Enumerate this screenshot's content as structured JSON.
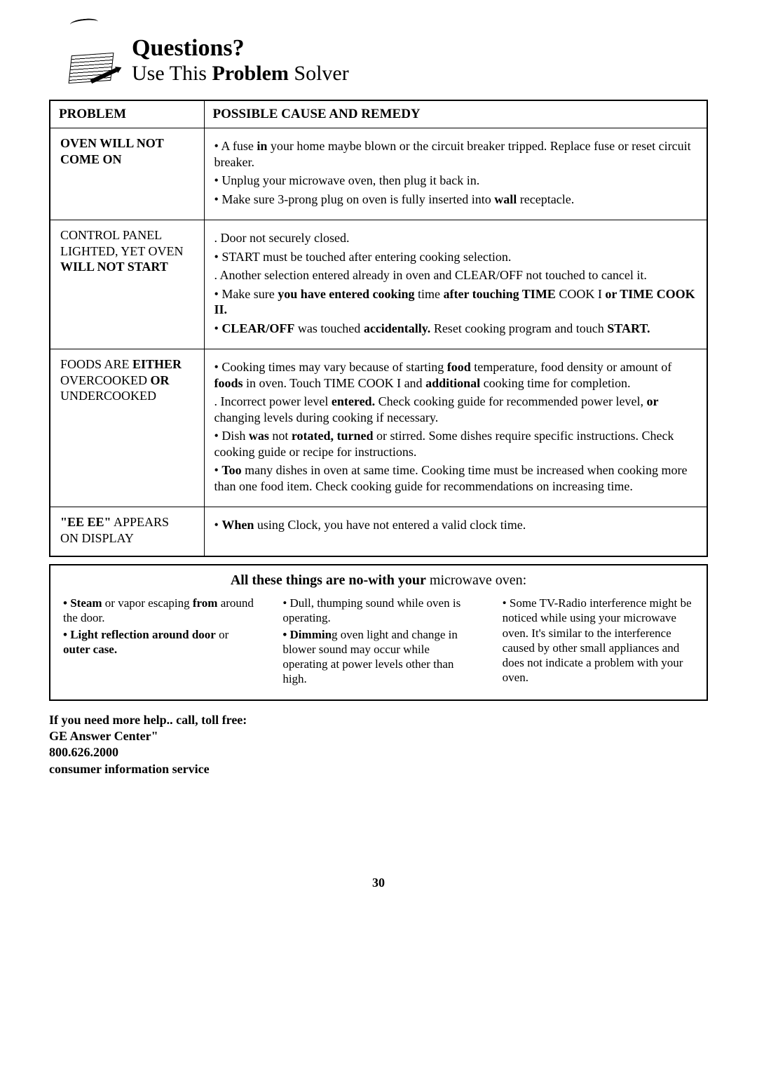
{
  "header": {
    "title": "Questions?",
    "subtitle_pre": "Use This ",
    "subtitle_bold": "Problem",
    "subtitle_post": " Solver"
  },
  "table": {
    "col_problem": "PROBLEM",
    "col_remedy": "POSSIBLE CAUSE AND REMEDY",
    "rows": [
      {
        "problem_html": "<span class='bold'>OVEN WILL NOT<br>COME ON</span>",
        "remedies": [
          {
            "b": true,
            "text": "A fuse <span class='bold'>in</span> your home maybe blown or the circuit breaker tripped. Replace fuse or reset circuit breaker."
          },
          {
            "b": true,
            "text": "Unplug your microwave oven, then plug it back in."
          },
          {
            "b": true,
            "text": "Make sure 3-prong plug on oven is fully inserted into <span class='bold'>wall</span> receptacle."
          }
        ]
      },
      {
        "problem_html": "CONTROL PANEL<br>LIGHTED, YET OVEN<br><span class='bold'>WILL NOT START</span>",
        "remedies": [
          {
            "b": false,
            "text": "Door not securely closed."
          },
          {
            "b": true,
            "text": "START must be touched after entering cooking selection."
          },
          {
            "b": false,
            "text": "Another selection entered already in oven and CLEAR/OFF not touched to cancel it."
          },
          {
            "b": true,
            "text": "Make sure <span class='bold'>you have entered cooking</span> time <span class='bold'>after touching TIME</span> COOK I <span class='bold'>or TIME COOK II.</span>"
          },
          {
            "b": true,
            "text": "<span class='bold'>CLEAR/OFF</span> was touched <span class='bold'>accidentally.</span> Reset cooking program and touch <span class='bold'>START.</span>"
          }
        ]
      },
      {
        "problem_html": "FOODS ARE <span class='bold'>EITHER</span><br>OVERCOOKED <span class='bold'>OR</span><br>UNDERCOOKED",
        "remedies": [
          {
            "b": true,
            "text": "Cooking times may vary because of starting <span class='bold'>food</span> temperature, food density or amount of <span class='bold'>foods</span> in oven. Touch TIME COOK I and <span class='bold'>additional</span> cooking time for completion."
          },
          {
            "b": false,
            "text": "Incorrect power level <span class='bold'>entered.</span> Check cooking guide for recommended power level, <span class='bold'>or</span> changing levels during cooking if necessary."
          },
          {
            "b": true,
            "text": "Dish <span class='bold'>was</span> not <span class='bold'>rotated, turned</span> or stirred. Some dishes require specific instructions. Check cooking guide or recipe for instructions."
          },
          {
            "b": true,
            "text": "<span class='bold'>Too</span> many dishes in oven at same time. Cooking time must be increased when cooking more than one food item. Check cooking guide for recommendations on increasing time."
          }
        ]
      },
      {
        "problem_html": "<span class='bold'>\"EE EE\"</span> APPEARS<br>ON DISPLAY",
        "remedies": [
          {
            "b": true,
            "text": "<span class='bold'>When</span> using Clock, you have not entered a valid clock time."
          }
        ]
      }
    ]
  },
  "normal": {
    "title_html": "<span class='bold'>All these things are no-with your</span> microwave oven:",
    "col1": [
      "<span class='bold'>• Steam</span> or vapor escaping <span class='bold'>from</span> around the door.",
      "<span class='bold'>• Light reflection around door</span> or <span class='bold'>outer case.</span>"
    ],
    "col2": [
      "• Dull, thumping sound while oven is operating.",
      "<span class='bold'>• Dimmin</span>g oven light and change in blower sound may occur while operating at power levels other than high."
    ],
    "col3": [
      "• Some TV-Radio interference might be noticed while using your microwave oven. It's similar to the interference caused by other small appliances and does not indicate a problem with your oven."
    ]
  },
  "footer": {
    "line1": "If you need more help.. call, toll free:",
    "line2": "GE Answer Center\"",
    "phone": "800.626.2000",
    "line3": "consumer information service"
  },
  "page_number": "30"
}
